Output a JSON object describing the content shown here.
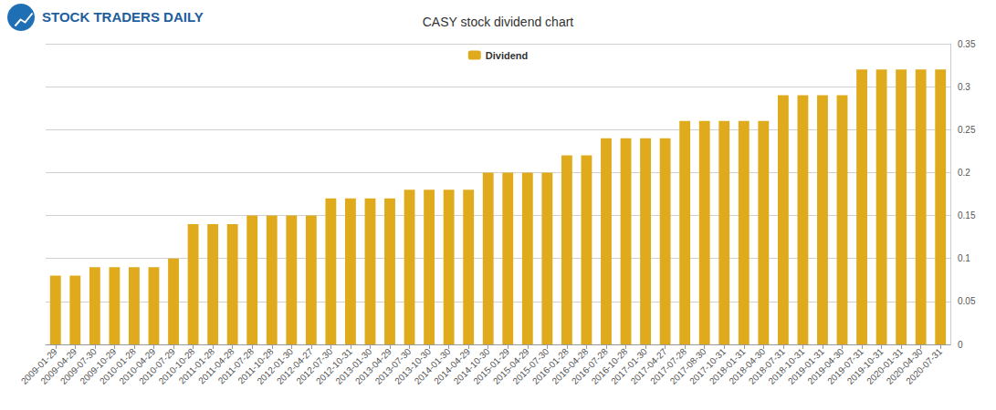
{
  "chart_data": {
    "type": "bar",
    "title": "CASY stock dividend chart",
    "annotations": [
      {
        "text": "STOCK TRADERS DAILY"
      }
    ],
    "categories": [
      "2009-01-29",
      "2009-04-29",
      "2009-07-30",
      "2009-10-29",
      "2010-01-28",
      "2010-04-29",
      "2010-07-29",
      "2010-10-28",
      "2011-01-28",
      "2011-04-28",
      "2011-07-28",
      "2011-10-28",
      "2012-01-30",
      "2012-04-27",
      "2012-07-30",
      "2012-10-31",
      "2013-01-30",
      "2013-04-29",
      "2013-07-30",
      "2013-10-30",
      "2014-01-30",
      "2014-04-29",
      "2014-10-30",
      "2015-01-29",
      "2015-04-29",
      "2015-07-30",
      "2016-01-28",
      "2016-04-28",
      "2016-07-28",
      "2016-10-28",
      "2017-01-30",
      "2017-04-27",
      "2017-07-28",
      "2017-08-30",
      "2017-10-31",
      "2018-01-31",
      "2018-04-30",
      "2018-07-31",
      "2018-10-31",
      "2019-01-31",
      "2019-04-30",
      "2019-07-31",
      "2019-10-31",
      "2020-01-31",
      "2020-04-30",
      "2020-07-31"
    ],
    "series": [
      {
        "name": "Dividend",
        "color": "#dfab1d",
        "values": [
          0.08,
          0.08,
          0.09,
          0.09,
          0.09,
          0.09,
          0.1,
          0.14,
          0.14,
          0.14,
          0.15,
          0.15,
          0.15,
          0.15,
          0.17,
          0.17,
          0.17,
          0.17,
          0.18,
          0.18,
          0.18,
          0.18,
          0.2,
          0.2,
          0.2,
          0.2,
          0.22,
          0.22,
          0.24,
          0.24,
          0.24,
          0.24,
          0.26,
          0.26,
          0.26,
          0.26,
          0.26,
          0.29,
          0.29,
          0.29,
          0.29,
          0.32,
          0.32,
          0.32,
          0.32,
          0.32
        ]
      }
    ],
    "ylim": [
      0,
      0.35
    ],
    "yticks": [
      0,
      0.05,
      0.1,
      0.15,
      0.2,
      0.25,
      0.3,
      0.35
    ],
    "grid": true,
    "legend": "top"
  }
}
